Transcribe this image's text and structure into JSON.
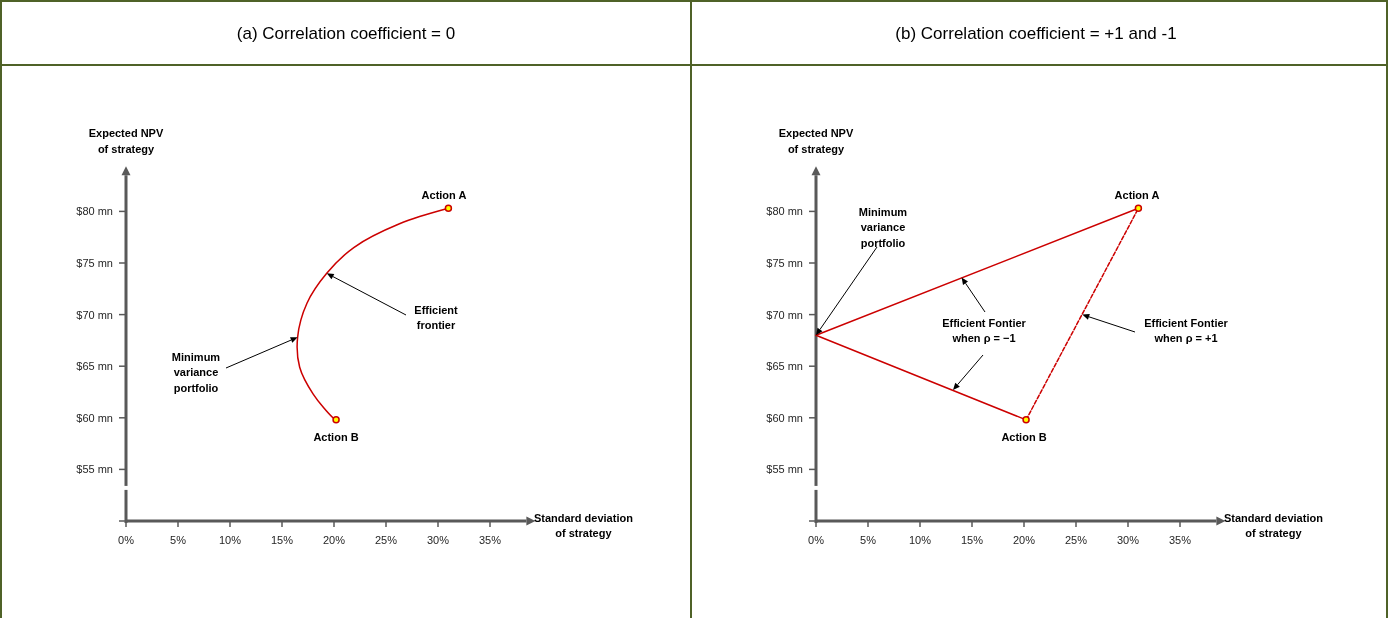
{
  "chart_data": [
    {
      "type": "line",
      "title": "(a) Correlation coefficient = 0",
      "xlabel": "Standard deviation\nof strategy",
      "ylabel": "Expected NPV\nof strategy",
      "xlim": [
        0,
        38.5
      ],
      "ylim": [
        50,
        83.5
      ],
      "xticks": [
        {
          "value": 0,
          "label": "0%"
        },
        {
          "value": 5,
          "label": "5%"
        },
        {
          "value": 10,
          "label": "10%"
        },
        {
          "value": 15,
          "label": "15%"
        },
        {
          "value": 20,
          "label": "20%"
        },
        {
          "value": 25,
          "label": "25%"
        },
        {
          "value": 30,
          "label": "30%"
        },
        {
          "value": 35,
          "label": "35%"
        }
      ],
      "yticks": [
        {
          "value": 50,
          "label": null
        },
        {
          "value": 55,
          "label": "$55 mn"
        },
        {
          "value": 60,
          "label": "$60 mn"
        },
        {
          "value": 65,
          "label": "$65 mn"
        },
        {
          "value": 70,
          "label": "$70 mn"
        },
        {
          "value": 75,
          "label": "$75 mn"
        },
        {
          "value": 80,
          "label": "$80 mn"
        }
      ],
      "grid": false,
      "series": [
        {
          "color": "#cc0000",
          "line_style": "solid",
          "x": [
            31,
            26.3,
            21.9,
            19.3,
            17.4,
            16.5,
            16.7,
            18,
            19.9,
            20.2
          ],
          "values": [
            80.3,
            78.8,
            76.5,
            74,
            71.1,
            67.8,
            64.9,
            62.3,
            60,
            59.8
          ]
        },
        {
          "type": "scatter",
          "color": "#ffff00",
          "marker": "circle",
          "x": [
            31,
            20.2
          ],
          "values": [
            80.3,
            59.8
          ]
        }
      ],
      "annotations": [
        {
          "text": "Action A",
          "x": 31,
          "y": 80.3
        },
        {
          "text": "Action B",
          "x": 20.2,
          "y": 59.8
        },
        {
          "text": "Minimum\nvariance\nportfolio",
          "x": 16.5,
          "y": 67.8
        },
        {
          "text": "Efficient\nfrontier",
          "x": 19.3,
          "y": 74
        }
      ]
    },
    {
      "type": "line",
      "title": "(b) Correlation coefficient = +1 and -1",
      "xlabel": "Standard deviation\nof strategy",
      "ylabel": "Expected NPV\nof strategy",
      "xlim": [
        0,
        38.5
      ],
      "ylim": [
        50,
        83.5
      ],
      "xticks": [
        {
          "value": 0,
          "label": "0%"
        },
        {
          "value": 5,
          "label": "5%"
        },
        {
          "value": 10,
          "label": "10%"
        },
        {
          "value": 15,
          "label": "15%"
        },
        {
          "value": 20,
          "label": "20%"
        },
        {
          "value": 25,
          "label": "25%"
        },
        {
          "value": 30,
          "label": "30%"
        },
        {
          "value": 35,
          "label": "35%"
        }
      ],
      "yticks": [
        {
          "value": 50,
          "label": null
        },
        {
          "value": 55,
          "label": "$55 mn"
        },
        {
          "value": 60,
          "label": "$60 mn"
        },
        {
          "value": 65,
          "label": "$65 mn"
        },
        {
          "value": 70,
          "label": "$70 mn"
        },
        {
          "value": 75,
          "label": "$75 mn"
        },
        {
          "value": 80,
          "label": "$80 mn"
        }
      ],
      "grid": false,
      "series": [
        {
          "color": "#cc0000",
          "line_style": "solid",
          "x": [
            31,
            0,
            20.2
          ],
          "values": [
            80.3,
            68,
            59.8
          ]
        },
        {
          "type": "line",
          "color": "#cc0000",
          "line_style": "dashed",
          "x": [
            20.2,
            31
          ],
          "values": [
            59.8,
            80.3
          ]
        },
        {
          "type": "scatter",
          "color": "#ffff00",
          "marker": "circle",
          "x": [
            31,
            20.2
          ],
          "values": [
            80.3,
            59.8
          ]
        }
      ],
      "annotations": [
        {
          "text": "Action A",
          "x": 31,
          "y": 80.3
        },
        {
          "text": "Action B",
          "x": 20.2,
          "y": 59.8
        },
        {
          "text": "Minimum\nvariance\nportfolio",
          "x": 0,
          "y": 68
        },
        {
          "text": "Efficient Fontier\nwhen ρ = −1",
          "x": 14,
          "y": 73.6
        },
        {
          "text": "Efficient Fontier\nwhen ρ = +1",
          "x": 25.6,
          "y": 70
        }
      ]
    }
  ]
}
